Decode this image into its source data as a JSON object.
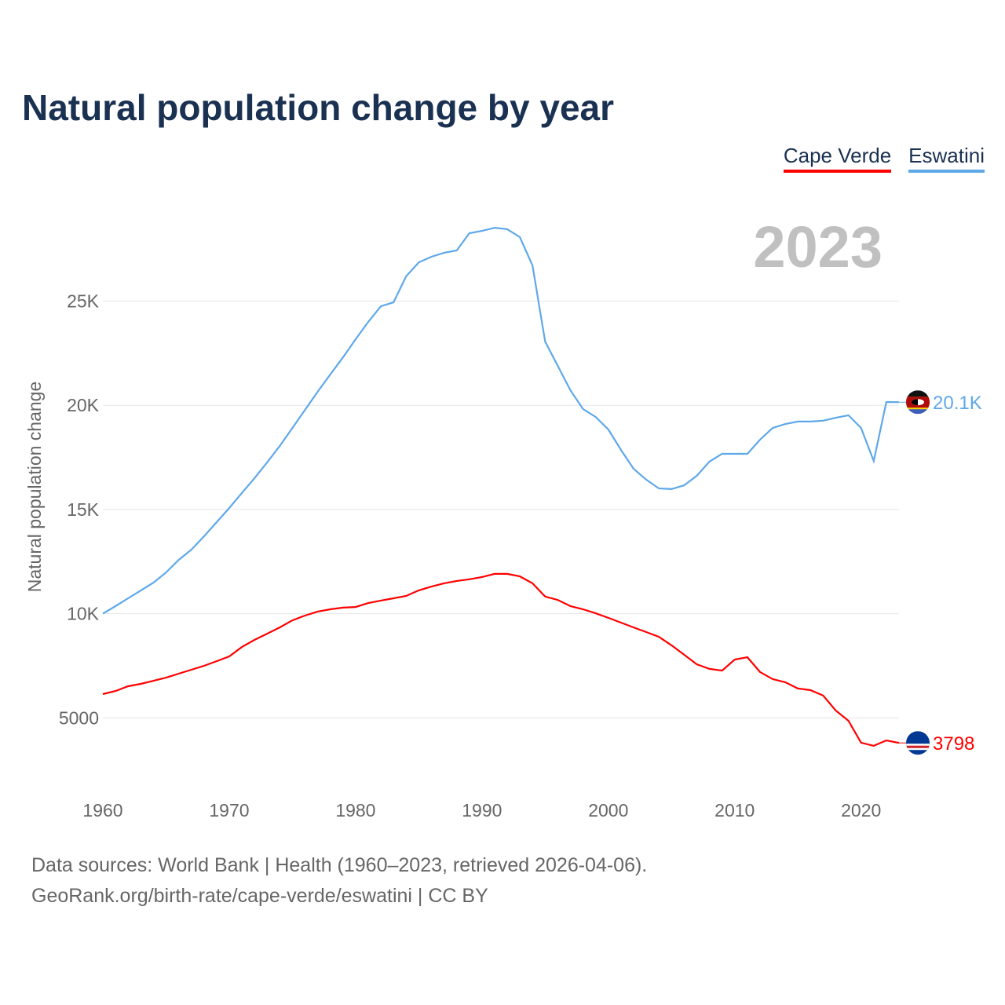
{
  "title": "Natural population change by year",
  "legend": [
    "Cape Verde",
    "Eswatini"
  ],
  "year_label": "2023",
  "footer": {
    "line1": "Data sources: World Bank | Health (1960–2023, retrieved 2026-04-06).",
    "line2": "GeoRank.org/birth-rate/cape-verde/eswatini | CC BY"
  },
  "chart_data": {
    "type": "line",
    "title": "Natural population change by year",
    "xlabel": "",
    "ylabel": "Natural population change",
    "xlim": [
      1960,
      2023
    ],
    "ylim": [
      0,
      30000
    ],
    "x_ticks": [
      1960,
      1970,
      1980,
      1990,
      2000,
      2010,
      2020
    ],
    "x_tick_labels": [
      "1960",
      "1970",
      "1980",
      "1990",
      "2000",
      "2010",
      "2020"
    ],
    "y_ticks": [
      5000,
      10000,
      15000,
      20000,
      25000
    ],
    "y_tick_labels": [
      "5000",
      "10K",
      "15K",
      "20K",
      "25K"
    ],
    "grid": true,
    "legend_position": "top-right",
    "x_start": 1960,
    "series": [
      {
        "name": "Cape Verde",
        "color": "#ff0000",
        "end_label": "3798",
        "values": [
          6140,
          6290,
          6520,
          6630,
          6780,
          6930,
          7120,
          7310,
          7500,
          7720,
          7950,
          8400,
          8740,
          9040,
          9340,
          9680,
          9910,
          10100,
          10210,
          10290,
          10320,
          10510,
          10630,
          10740,
          10850,
          11120,
          11300,
          11460,
          11570,
          11650,
          11760,
          11910,
          11910,
          11790,
          11460,
          10820,
          10660,
          10360,
          10210,
          10020,
          9800,
          9570,
          9340,
          9120,
          8890,
          8480,
          8030,
          7570,
          7350,
          7270,
          7800,
          7910,
          7200,
          6860,
          6710,
          6410,
          6330,
          6070,
          5350,
          4860,
          3810,
          3660,
          3920,
          3798
        ]
      },
      {
        "name": "Eswatini",
        "color": "#5ea8ea",
        "end_label": "20.1K",
        "values": [
          10000,
          10360,
          10740,
          11110,
          11490,
          11980,
          12580,
          13070,
          13710,
          14390,
          15070,
          15790,
          16500,
          17260,
          18050,
          18910,
          19780,
          20650,
          21480,
          22300,
          23170,
          24000,
          24750,
          24940,
          26190,
          26860,
          27130,
          27320,
          27430,
          28260,
          28370,
          28520,
          28450,
          28070,
          26710,
          23060,
          21890,
          20720,
          19820,
          19440,
          18840,
          17860,
          16950,
          16430,
          16010,
          15980,
          16160,
          16620,
          17300,
          17670,
          17670,
          17670,
          18350,
          18910,
          19100,
          19220,
          19220,
          19260,
          19400,
          19520,
          18910,
          17330,
          20160,
          20150
        ]
      }
    ]
  }
}
